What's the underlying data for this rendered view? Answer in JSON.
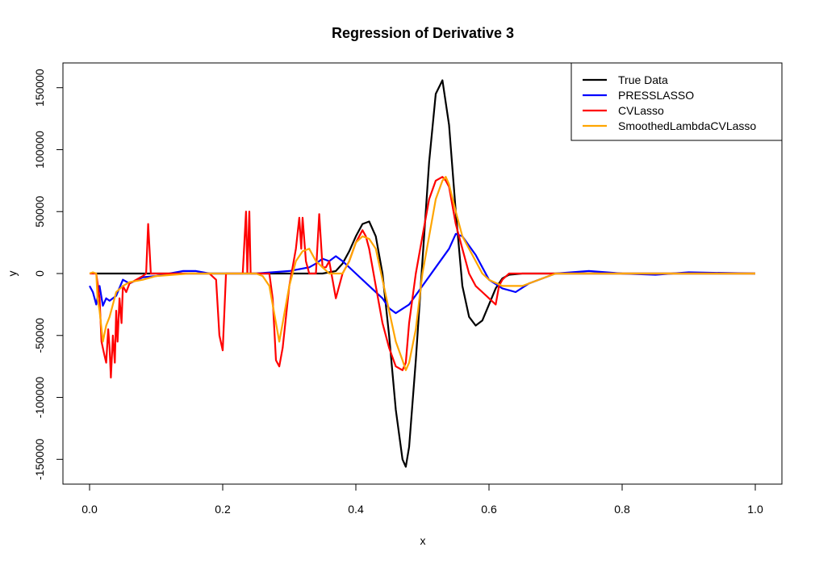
{
  "chart_data": {
    "type": "line",
    "title": "Regression of Derivative  3",
    "xlabel": "x",
    "ylabel": "y",
    "xlim": [
      -0.04,
      1.04
    ],
    "ylim": [
      -170000,
      170000
    ],
    "x_ticks": [
      0.0,
      0.2,
      0.4,
      0.6,
      0.8,
      1.0
    ],
    "x_tick_labels": [
      "0.0",
      "0.2",
      "0.4",
      "0.6",
      "0.8",
      "1.0"
    ],
    "y_ticks": [
      -150000,
      -100000,
      -50000,
      0,
      50000,
      100000,
      150000
    ],
    "y_tick_labels": [
      "-150000",
      "-100000",
      "-50000",
      "0",
      "50000",
      "100000",
      "150000"
    ],
    "grid": false,
    "legend_position": "top-right",
    "series": [
      {
        "name": "True Data",
        "color": "#000000",
        "x": [
          0.01,
          0.35,
          0.37,
          0.38,
          0.39,
          0.4,
          0.41,
          0.42,
          0.43,
          0.44,
          0.45,
          0.46,
          0.47,
          0.475,
          0.48,
          0.49,
          0.5,
          0.51,
          0.52,
          0.53,
          0.54,
          0.55,
          0.56,
          0.57,
          0.58,
          0.59,
          0.6,
          0.61,
          0.62,
          0.63,
          0.65,
          0.7,
          1.0
        ],
        "y": [
          0,
          0,
          2000,
          8000,
          18000,
          30000,
          40000,
          42000,
          30000,
          0,
          -50000,
          -110000,
          -150000,
          -156000,
          -140000,
          -70000,
          10000,
          90000,
          145000,
          156000,
          120000,
          50000,
          -10000,
          -35000,
          -42000,
          -38000,
          -25000,
          -12000,
          -4000,
          -1000,
          0,
          0,
          0
        ]
      },
      {
        "name": "PRESSLASSO",
        "color": "#0000ff",
        "x": [
          0.0,
          0.005,
          0.01,
          0.015,
          0.02,
          0.025,
          0.03,
          0.04,
          0.05,
          0.06,
          0.08,
          0.1,
          0.12,
          0.14,
          0.16,
          0.18,
          0.2,
          0.25,
          0.3,
          0.33,
          0.34,
          0.35,
          0.36,
          0.37,
          0.38,
          0.4,
          0.42,
          0.44,
          0.45,
          0.46,
          0.48,
          0.5,
          0.52,
          0.54,
          0.55,
          0.56,
          0.58,
          0.6,
          0.62,
          0.64,
          0.66,
          0.7,
          0.75,
          0.8,
          0.85,
          0.9,
          1.0
        ],
        "y": [
          -10000,
          -15000,
          -25000,
          -10000,
          -26000,
          -20000,
          -22000,
          -18000,
          -5000,
          -8000,
          -3000,
          -2000,
          0,
          2000,
          2000,
          0,
          0,
          0,
          2000,
          5000,
          8000,
          12000,
          10000,
          14000,
          10000,
          0,
          -10000,
          -20000,
          -28000,
          -32000,
          -25000,
          -10000,
          5000,
          20000,
          32000,
          30000,
          15000,
          -5000,
          -12000,
          -15000,
          -8000,
          0,
          2000,
          0,
          -1000,
          1000,
          0
        ]
      },
      {
        "name": "CVLasso",
        "color": "#ff0000",
        "x": [
          0.0,
          0.005,
          0.01,
          0.015,
          0.018,
          0.022,
          0.025,
          0.028,
          0.03,
          0.032,
          0.035,
          0.038,
          0.04,
          0.042,
          0.045,
          0.048,
          0.05,
          0.055,
          0.06,
          0.07,
          0.08,
          0.085,
          0.088,
          0.09,
          0.092,
          0.095,
          0.1,
          0.12,
          0.15,
          0.18,
          0.19,
          0.195,
          0.2,
          0.205,
          0.21,
          0.22,
          0.23,
          0.235,
          0.237,
          0.24,
          0.242,
          0.245,
          0.25,
          0.26,
          0.27,
          0.275,
          0.28,
          0.285,
          0.29,
          0.3,
          0.31,
          0.315,
          0.318,
          0.32,
          0.325,
          0.33,
          0.34,
          0.345,
          0.35,
          0.355,
          0.36,
          0.365,
          0.37,
          0.38,
          0.39,
          0.4,
          0.41,
          0.415,
          0.42,
          0.425,
          0.43,
          0.44,
          0.45,
          0.46,
          0.47,
          0.475,
          0.48,
          0.49,
          0.5,
          0.51,
          0.52,
          0.53,
          0.535,
          0.54,
          0.55,
          0.56,
          0.57,
          0.58,
          0.59,
          0.6,
          0.61,
          0.615,
          0.62,
          0.63,
          0.65,
          0.7,
          0.8,
          0.9,
          1.0
        ],
        "y": [
          0,
          0,
          0,
          -20000,
          -55000,
          -65000,
          -72000,
          -45000,
          -60000,
          -84000,
          -50000,
          -72000,
          -30000,
          -55000,
          -20000,
          -40000,
          -10000,
          -15000,
          -8000,
          -5000,
          -2000,
          0,
          40000,
          20000,
          0,
          0,
          0,
          0,
          0,
          0,
          -5000,
          -50000,
          -62000,
          0,
          0,
          0,
          0,
          50000,
          0,
          50000,
          0,
          0,
          0,
          0,
          0,
          -20000,
          -70000,
          -75000,
          -60000,
          -10000,
          20000,
          45000,
          20000,
          45000,
          10000,
          0,
          0,
          48000,
          5000,
          5000,
          10000,
          -5000,
          -20000,
          0,
          10000,
          25000,
          35000,
          30000,
          20000,
          5000,
          -10000,
          -40000,
          -60000,
          -75000,
          -78000,
          -72000,
          -40000,
          0,
          30000,
          60000,
          75000,
          78000,
          75000,
          70000,
          40000,
          20000,
          0,
          -10000,
          -15000,
          -20000,
          -25000,
          -10000,
          -5000,
          0,
          0,
          0,
          0,
          0,
          0
        ]
      },
      {
        "name": "SmoothedLambdaCVLasso",
        "color": "#ffa500",
        "x": [
          0.0,
          0.005,
          0.01,
          0.012,
          0.015,
          0.02,
          0.025,
          0.03,
          0.035,
          0.04,
          0.05,
          0.06,
          0.08,
          0.1,
          0.15,
          0.2,
          0.25,
          0.26,
          0.27,
          0.275,
          0.28,
          0.285,
          0.29,
          0.3,
          0.31,
          0.32,
          0.33,
          0.34,
          0.35,
          0.36,
          0.38,
          0.39,
          0.4,
          0.41,
          0.42,
          0.43,
          0.44,
          0.45,
          0.46,
          0.47,
          0.475,
          0.48,
          0.49,
          0.5,
          0.51,
          0.52,
          0.53,
          0.535,
          0.54,
          0.55,
          0.56,
          0.57,
          0.58,
          0.59,
          0.6,
          0.62,
          0.65,
          0.7,
          0.8,
          0.9,
          1.0
        ],
        "y": [
          0,
          1000,
          0,
          -20000,
          -30000,
          -55000,
          -42000,
          -35000,
          -25000,
          -15000,
          -10000,
          -7000,
          -5000,
          -2000,
          0,
          0,
          0,
          -2000,
          -10000,
          -25000,
          -40000,
          -55000,
          -40000,
          -10000,
          10000,
          18000,
          20000,
          10000,
          5000,
          0,
          0,
          10000,
          25000,
          30000,
          28000,
          20000,
          -5000,
          -30000,
          -55000,
          -70000,
          -78000,
          -72000,
          -45000,
          0,
          30000,
          60000,
          75000,
          78000,
          72000,
          50000,
          30000,
          20000,
          10000,
          0,
          -5000,
          -10000,
          -10000,
          0,
          0,
          0,
          0
        ]
      }
    ]
  }
}
